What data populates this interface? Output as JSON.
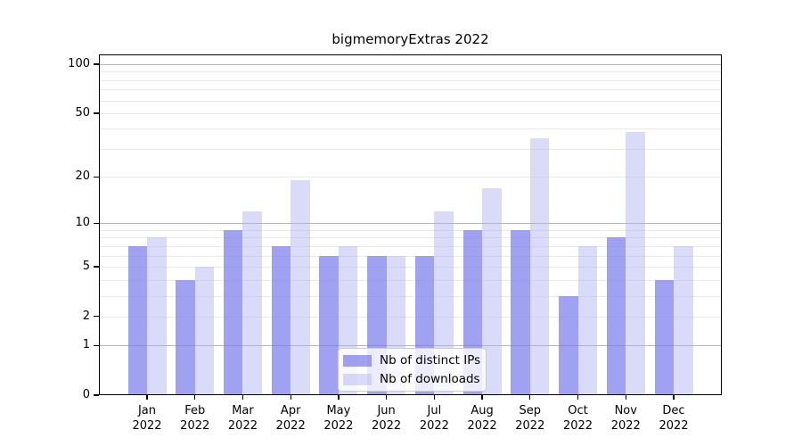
{
  "chart_data": {
    "type": "bar",
    "title": "bigmemoryExtras 2022",
    "x_month_labels": [
      "Jan",
      "Feb",
      "Mar",
      "Apr",
      "May",
      "Jun",
      "Jul",
      "Aug",
      "Sep",
      "Oct",
      "Nov",
      "Dec"
    ],
    "x_year_label": "2022",
    "series": [
      {
        "name": "Nb of distinct IPs",
        "color": "#7c7dec",
        "alpha": 0.72,
        "values": [
          7,
          4,
          9,
          7,
          6,
          6,
          6,
          9,
          9,
          3,
          8,
          4
        ]
      },
      {
        "name": "Nb of downloads",
        "color": "#aeaff0",
        "alpha": 0.45,
        "values": [
          8,
          5,
          12,
          19,
          7,
          6,
          12,
          17,
          35,
          7,
          38,
          7
        ]
      }
    ],
    "y_axis": {
      "scale": "log10(1+x)",
      "tick_labels": [
        "100",
        "50",
        "20",
        "10",
        "5",
        "2",
        "1",
        "0"
      ],
      "tick_values": [
        100,
        50,
        20,
        10,
        5,
        2,
        1,
        0
      ],
      "major_gridlines": [
        1,
        10,
        100
      ],
      "minor_gridlines": [
        2,
        3,
        4,
        5,
        6,
        7,
        8,
        9,
        20,
        30,
        40,
        50,
        60,
        70,
        80,
        90
      ],
      "top_value": 114
    },
    "legend": {
      "position": "lower center",
      "items": [
        "Nb of distinct IPs",
        "Nb of downloads"
      ]
    },
    "colors": {
      "grid_major": "#b5b5b5",
      "grid_minor": "#eaeaea",
      "axis": "#000000",
      "text": "#000000",
      "legend_border": "#cccccc",
      "background": "#ffffff"
    }
  }
}
